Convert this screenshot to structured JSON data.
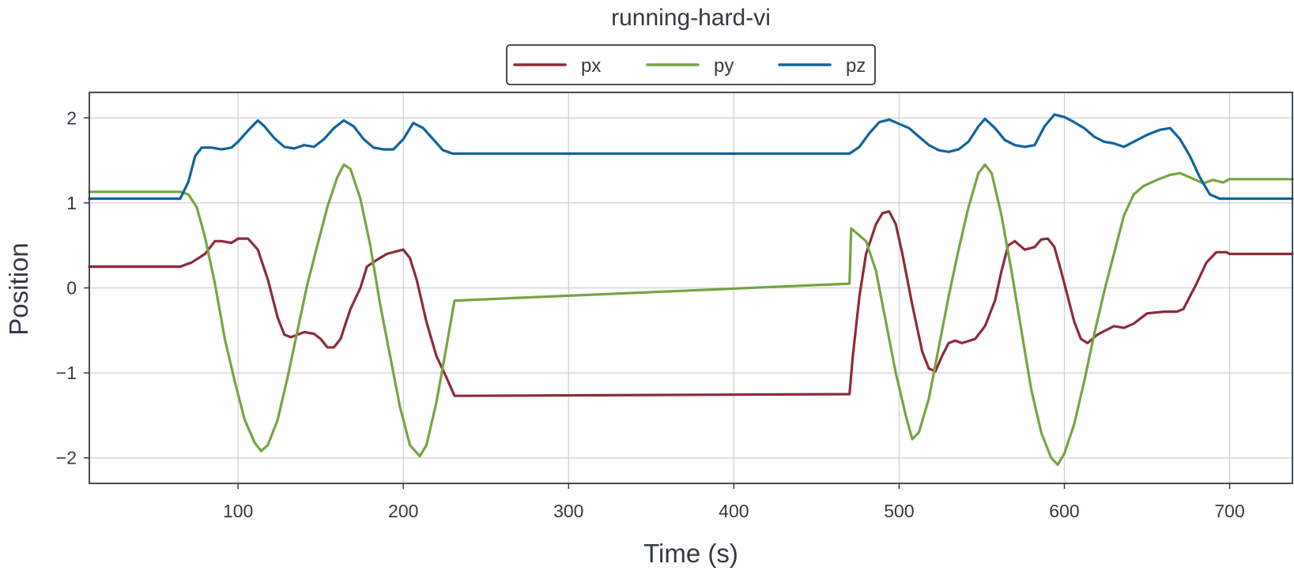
{
  "chart_data": {
    "type": "line",
    "title": "running-hard-vi",
    "xlabel": "Time (s)",
    "ylabel": "Position",
    "xlim": [
      10,
      738
    ],
    "ylim": [
      -2.3,
      2.3
    ],
    "xticks": [
      100,
      200,
      300,
      400,
      500,
      600,
      700
    ],
    "yticks": [
      -2,
      -1,
      0,
      1,
      2
    ],
    "xtick_labels": [
      "100",
      "200",
      "300",
      "400",
      "500",
      "600",
      "700"
    ],
    "ytick_labels": [
      "−2",
      "−1",
      "0",
      "1",
      "2"
    ],
    "grid": true,
    "legend_position": "top-center-outside",
    "series": [
      {
        "name": "px",
        "color": "#8c2b3b",
        "points": [
          [
            10,
            0.25
          ],
          [
            40,
            0.25
          ],
          [
            65,
            0.25
          ],
          [
            72,
            0.3
          ],
          [
            80,
            0.4
          ],
          [
            86,
            0.55
          ],
          [
            90,
            0.55
          ],
          [
            96,
            0.53
          ],
          [
            100,
            0.58
          ],
          [
            106,
            0.58
          ],
          [
            112,
            0.45
          ],
          [
            118,
            0.1
          ],
          [
            124,
            -0.35
          ],
          [
            128,
            -0.55
          ],
          [
            132,
            -0.58
          ],
          [
            136,
            -0.55
          ],
          [
            140,
            -0.52
          ],
          [
            146,
            -0.54
          ],
          [
            150,
            -0.6
          ],
          [
            154,
            -0.7
          ],
          [
            158,
            -0.7
          ],
          [
            162,
            -0.6
          ],
          [
            168,
            -0.25
          ],
          [
            174,
            0.0
          ],
          [
            178,
            0.25
          ],
          [
            184,
            0.33
          ],
          [
            190,
            0.4
          ],
          [
            196,
            0.43
          ],
          [
            200,
            0.45
          ],
          [
            204,
            0.35
          ],
          [
            208,
            0.1
          ],
          [
            214,
            -0.4
          ],
          [
            220,
            -0.8
          ],
          [
            226,
            -1.05
          ],
          [
            231,
            -1.27
          ],
          [
            350,
            -1.26
          ],
          [
            470,
            -1.25
          ],
          [
            472,
            -0.8
          ],
          [
            476,
            -0.1
          ],
          [
            480,
            0.4
          ],
          [
            486,
            0.75
          ],
          [
            490,
            0.88
          ],
          [
            494,
            0.9
          ],
          [
            498,
            0.75
          ],
          [
            502,
            0.4
          ],
          [
            508,
            -0.2
          ],
          [
            514,
            -0.75
          ],
          [
            518,
            -0.95
          ],
          [
            522,
            -0.98
          ],
          [
            526,
            -0.8
          ],
          [
            530,
            -0.65
          ],
          [
            534,
            -0.62
          ],
          [
            538,
            -0.65
          ],
          [
            546,
            -0.6
          ],
          [
            552,
            -0.45
          ],
          [
            558,
            -0.15
          ],
          [
            562,
            0.2
          ],
          [
            566,
            0.5
          ],
          [
            570,
            0.55
          ],
          [
            576,
            0.45
          ],
          [
            582,
            0.48
          ],
          [
            586,
            0.57
          ],
          [
            590,
            0.58
          ],
          [
            594,
            0.48
          ],
          [
            598,
            0.2
          ],
          [
            602,
            -0.1
          ],
          [
            606,
            -0.4
          ],
          [
            610,
            -0.6
          ],
          [
            614,
            -0.65
          ],
          [
            620,
            -0.55
          ],
          [
            630,
            -0.45
          ],
          [
            636,
            -0.47
          ],
          [
            642,
            -0.42
          ],
          [
            650,
            -0.3
          ],
          [
            660,
            -0.28
          ],
          [
            668,
            -0.28
          ],
          [
            672,
            -0.25
          ],
          [
            680,
            0.05
          ],
          [
            686,
            0.3
          ],
          [
            692,
            0.42
          ],
          [
            698,
            0.42
          ],
          [
            700,
            0.4
          ],
          [
            738,
            0.4
          ]
        ]
      },
      {
        "name": "py",
        "color": "#77a444",
        "points": [
          [
            10,
            1.13
          ],
          [
            40,
            1.13
          ],
          [
            65,
            1.13
          ],
          [
            70,
            1.1
          ],
          [
            75,
            0.95
          ],
          [
            80,
            0.6
          ],
          [
            86,
            0.05
          ],
          [
            92,
            -0.6
          ],
          [
            98,
            -1.1
          ],
          [
            104,
            -1.55
          ],
          [
            110,
            -1.82
          ],
          [
            114,
            -1.92
          ],
          [
            118,
            -1.85
          ],
          [
            124,
            -1.55
          ],
          [
            130,
            -1.05
          ],
          [
            136,
            -0.5
          ],
          [
            142,
            0.05
          ],
          [
            148,
            0.5
          ],
          [
            154,
            0.95
          ],
          [
            160,
            1.3
          ],
          [
            164,
            1.45
          ],
          [
            168,
            1.4
          ],
          [
            174,
            1.05
          ],
          [
            180,
            0.5
          ],
          [
            186,
            -0.2
          ],
          [
            192,
            -0.8
          ],
          [
            198,
            -1.4
          ],
          [
            204,
            -1.85
          ],
          [
            210,
            -1.98
          ],
          [
            214,
            -1.85
          ],
          [
            220,
            -1.35
          ],
          [
            226,
            -0.7
          ],
          [
            231,
            -0.15
          ],
          [
            350,
            -0.05
          ],
          [
            470,
            0.05
          ],
          [
            471,
            0.7
          ],
          [
            474,
            0.65
          ],
          [
            480,
            0.55
          ],
          [
            486,
            0.2
          ],
          [
            492,
            -0.4
          ],
          [
            498,
            -1.0
          ],
          [
            504,
            -1.5
          ],
          [
            508,
            -1.78
          ],
          [
            512,
            -1.7
          ],
          [
            518,
            -1.3
          ],
          [
            524,
            -0.7
          ],
          [
            530,
            -0.1
          ],
          [
            536,
            0.45
          ],
          [
            542,
            0.95
          ],
          [
            548,
            1.35
          ],
          [
            552,
            1.45
          ],
          [
            556,
            1.35
          ],
          [
            562,
            0.85
          ],
          [
            568,
            0.2
          ],
          [
            574,
            -0.5
          ],
          [
            580,
            -1.2
          ],
          [
            586,
            -1.7
          ],
          [
            592,
            -2.0
          ],
          [
            596,
            -2.08
          ],
          [
            600,
            -1.95
          ],
          [
            606,
            -1.6
          ],
          [
            612,
            -1.1
          ],
          [
            618,
            -0.55
          ],
          [
            624,
            -0.05
          ],
          [
            630,
            0.4
          ],
          [
            636,
            0.85
          ],
          [
            642,
            1.1
          ],
          [
            648,
            1.2
          ],
          [
            656,
            1.27
          ],
          [
            664,
            1.33
          ],
          [
            670,
            1.35
          ],
          [
            676,
            1.3
          ],
          [
            684,
            1.23
          ],
          [
            690,
            1.27
          ],
          [
            696,
            1.24
          ],
          [
            700,
            1.28
          ],
          [
            738,
            1.28
          ]
        ]
      },
      {
        "name": "pz",
        "color": "#10639e",
        "points": [
          [
            10,
            1.05
          ],
          [
            40,
            1.05
          ],
          [
            65,
            1.05
          ],
          [
            70,
            1.25
          ],
          [
            74,
            1.55
          ],
          [
            78,
            1.65
          ],
          [
            84,
            1.65
          ],
          [
            90,
            1.63
          ],
          [
            96,
            1.65
          ],
          [
            100,
            1.72
          ],
          [
            106,
            1.85
          ],
          [
            112,
            1.97
          ],
          [
            116,
            1.9
          ],
          [
            122,
            1.76
          ],
          [
            128,
            1.66
          ],
          [
            134,
            1.64
          ],
          [
            140,
            1.68
          ],
          [
            146,
            1.66
          ],
          [
            152,
            1.75
          ],
          [
            158,
            1.88
          ],
          [
            164,
            1.97
          ],
          [
            170,
            1.9
          ],
          [
            176,
            1.75
          ],
          [
            182,
            1.65
          ],
          [
            188,
            1.63
          ],
          [
            194,
            1.63
          ],
          [
            200,
            1.75
          ],
          [
            206,
            1.94
          ],
          [
            212,
            1.88
          ],
          [
            218,
            1.75
          ],
          [
            224,
            1.62
          ],
          [
            230,
            1.58
          ],
          [
            231,
            1.58
          ],
          [
            350,
            1.58
          ],
          [
            470,
            1.58
          ],
          [
            476,
            1.66
          ],
          [
            482,
            1.82
          ],
          [
            488,
            1.95
          ],
          [
            494,
            1.98
          ],
          [
            500,
            1.93
          ],
          [
            506,
            1.88
          ],
          [
            512,
            1.78
          ],
          [
            518,
            1.68
          ],
          [
            524,
            1.62
          ],
          [
            530,
            1.6
          ],
          [
            536,
            1.63
          ],
          [
            542,
            1.72
          ],
          [
            548,
            1.9
          ],
          [
            552,
            1.99
          ],
          [
            558,
            1.88
          ],
          [
            564,
            1.74
          ],
          [
            570,
            1.68
          ],
          [
            576,
            1.66
          ],
          [
            582,
            1.68
          ],
          [
            588,
            1.9
          ],
          [
            594,
            2.04
          ],
          [
            600,
            2.01
          ],
          [
            606,
            1.95
          ],
          [
            612,
            1.88
          ],
          [
            618,
            1.78
          ],
          [
            624,
            1.72
          ],
          [
            630,
            1.7
          ],
          [
            636,
            1.66
          ],
          [
            642,
            1.72
          ],
          [
            650,
            1.8
          ],
          [
            658,
            1.86
          ],
          [
            664,
            1.88
          ],
          [
            670,
            1.75
          ],
          [
            676,
            1.55
          ],
          [
            682,
            1.3
          ],
          [
            688,
            1.1
          ],
          [
            694,
            1.05
          ],
          [
            738,
            1.05
          ]
        ]
      }
    ]
  }
}
